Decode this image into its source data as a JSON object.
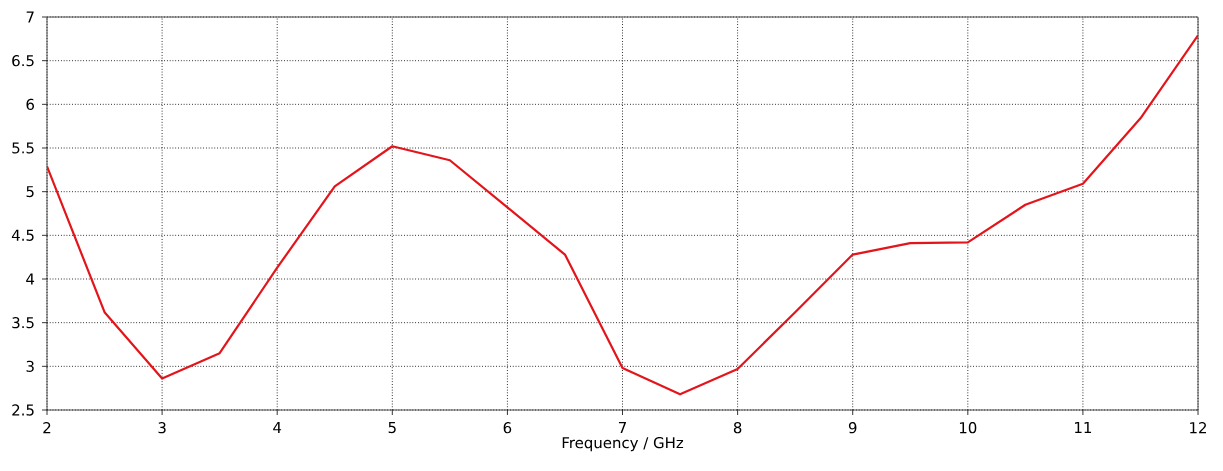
{
  "chart_data": {
    "type": "line",
    "xlabel": "Frequency / GHz",
    "x": [
      2,
      2.5,
      3,
      3.5,
      4,
      4.5,
      5,
      5.5,
      6,
      6.5,
      7,
      7.5,
      8,
      8.5,
      9,
      9.5,
      10,
      10.5,
      11,
      11.5,
      12
    ],
    "series": [
      {
        "color": "#e3151b",
        "values": [
          5.29,
          3.62,
          2.86,
          3.15,
          4.13,
          5.06,
          5.52,
          5.36,
          4.82,
          4.28,
          2.98,
          2.68,
          2.97,
          3.62,
          4.28,
          4.41,
          4.42,
          4.85,
          5.09,
          5.84,
          6.79
        ]
      }
    ],
    "xlim": [
      2,
      12
    ],
    "xticks": [
      2,
      3,
      4,
      5,
      6,
      7,
      8,
      9,
      10,
      11,
      12
    ],
    "ylim": [
      2.5,
      7
    ],
    "yticks": [
      2.5,
      3,
      3.5,
      4,
      4.5,
      5,
      5.5,
      6,
      6.5,
      7
    ],
    "grid": true,
    "marker": "none",
    "line_style": "solid"
  }
}
